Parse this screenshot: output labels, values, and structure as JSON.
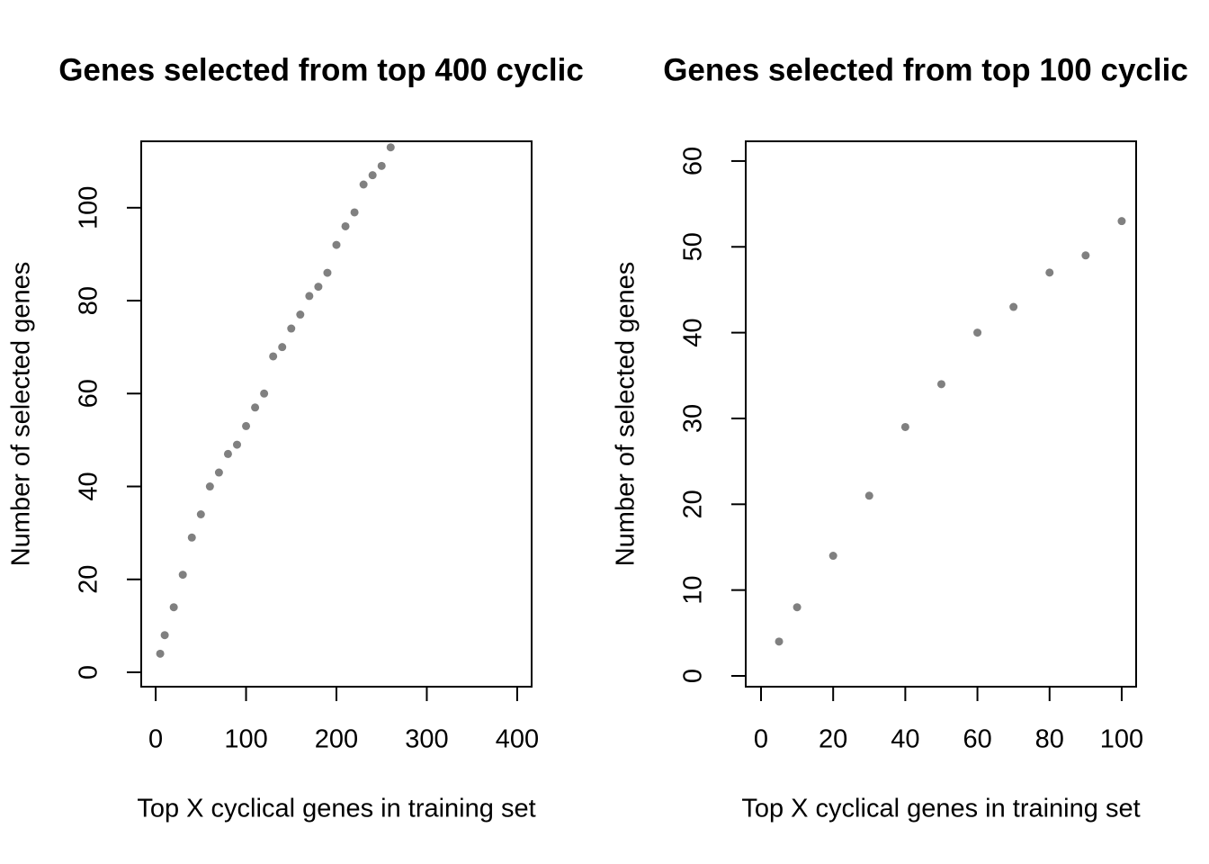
{
  "chart_data": [
    {
      "type": "scatter",
      "title": "Genes selected from top 400 cyclic",
      "x_label": "Top X cyclical genes in training set",
      "y_label": "Number of selected genes",
      "color": "#808080",
      "x": [
        5,
        10,
        20,
        30,
        40,
        50,
        60,
        70,
        80,
        90,
        100,
        110,
        120,
        130,
        140,
        150,
        160,
        170,
        180,
        190,
        200,
        210,
        220,
        230,
        240,
        250,
        260
      ],
      "values": [
        4,
        8,
        14,
        21,
        29,
        34,
        40,
        43,
        47,
        49,
        53,
        57,
        60,
        68,
        70,
        74,
        77,
        81,
        83,
        86,
        92,
        96,
        99,
        105,
        107,
        109,
        113
      ],
      "xlim": [
        -16,
        416
      ],
      "ylim": [
        -3.1,
        114.3
      ],
      "xticks": [
        0,
        100,
        200,
        300,
        400
      ],
      "yticks": [
        0,
        20,
        40,
        60,
        80,
        100
      ]
    },
    {
      "type": "scatter",
      "title": "Genes selected from top 100 cyclic",
      "x_label": "Top X cyclical genes in training set",
      "y_label": "Number of selected genes",
      "color": "#808080",
      "x": [
        5,
        10,
        20,
        30,
        40,
        50,
        60,
        70,
        80,
        90,
        100
      ],
      "values": [
        4,
        8,
        14,
        21,
        29,
        34,
        40,
        43,
        47,
        49,
        53
      ],
      "xlim": [
        -4.24,
        104
      ],
      "ylim": [
        -1.26,
        62.3
      ],
      "xticks": [
        0,
        20,
        40,
        60,
        80,
        100
      ],
      "yticks": [
        0,
        10,
        20,
        30,
        40,
        50,
        60
      ]
    }
  ]
}
